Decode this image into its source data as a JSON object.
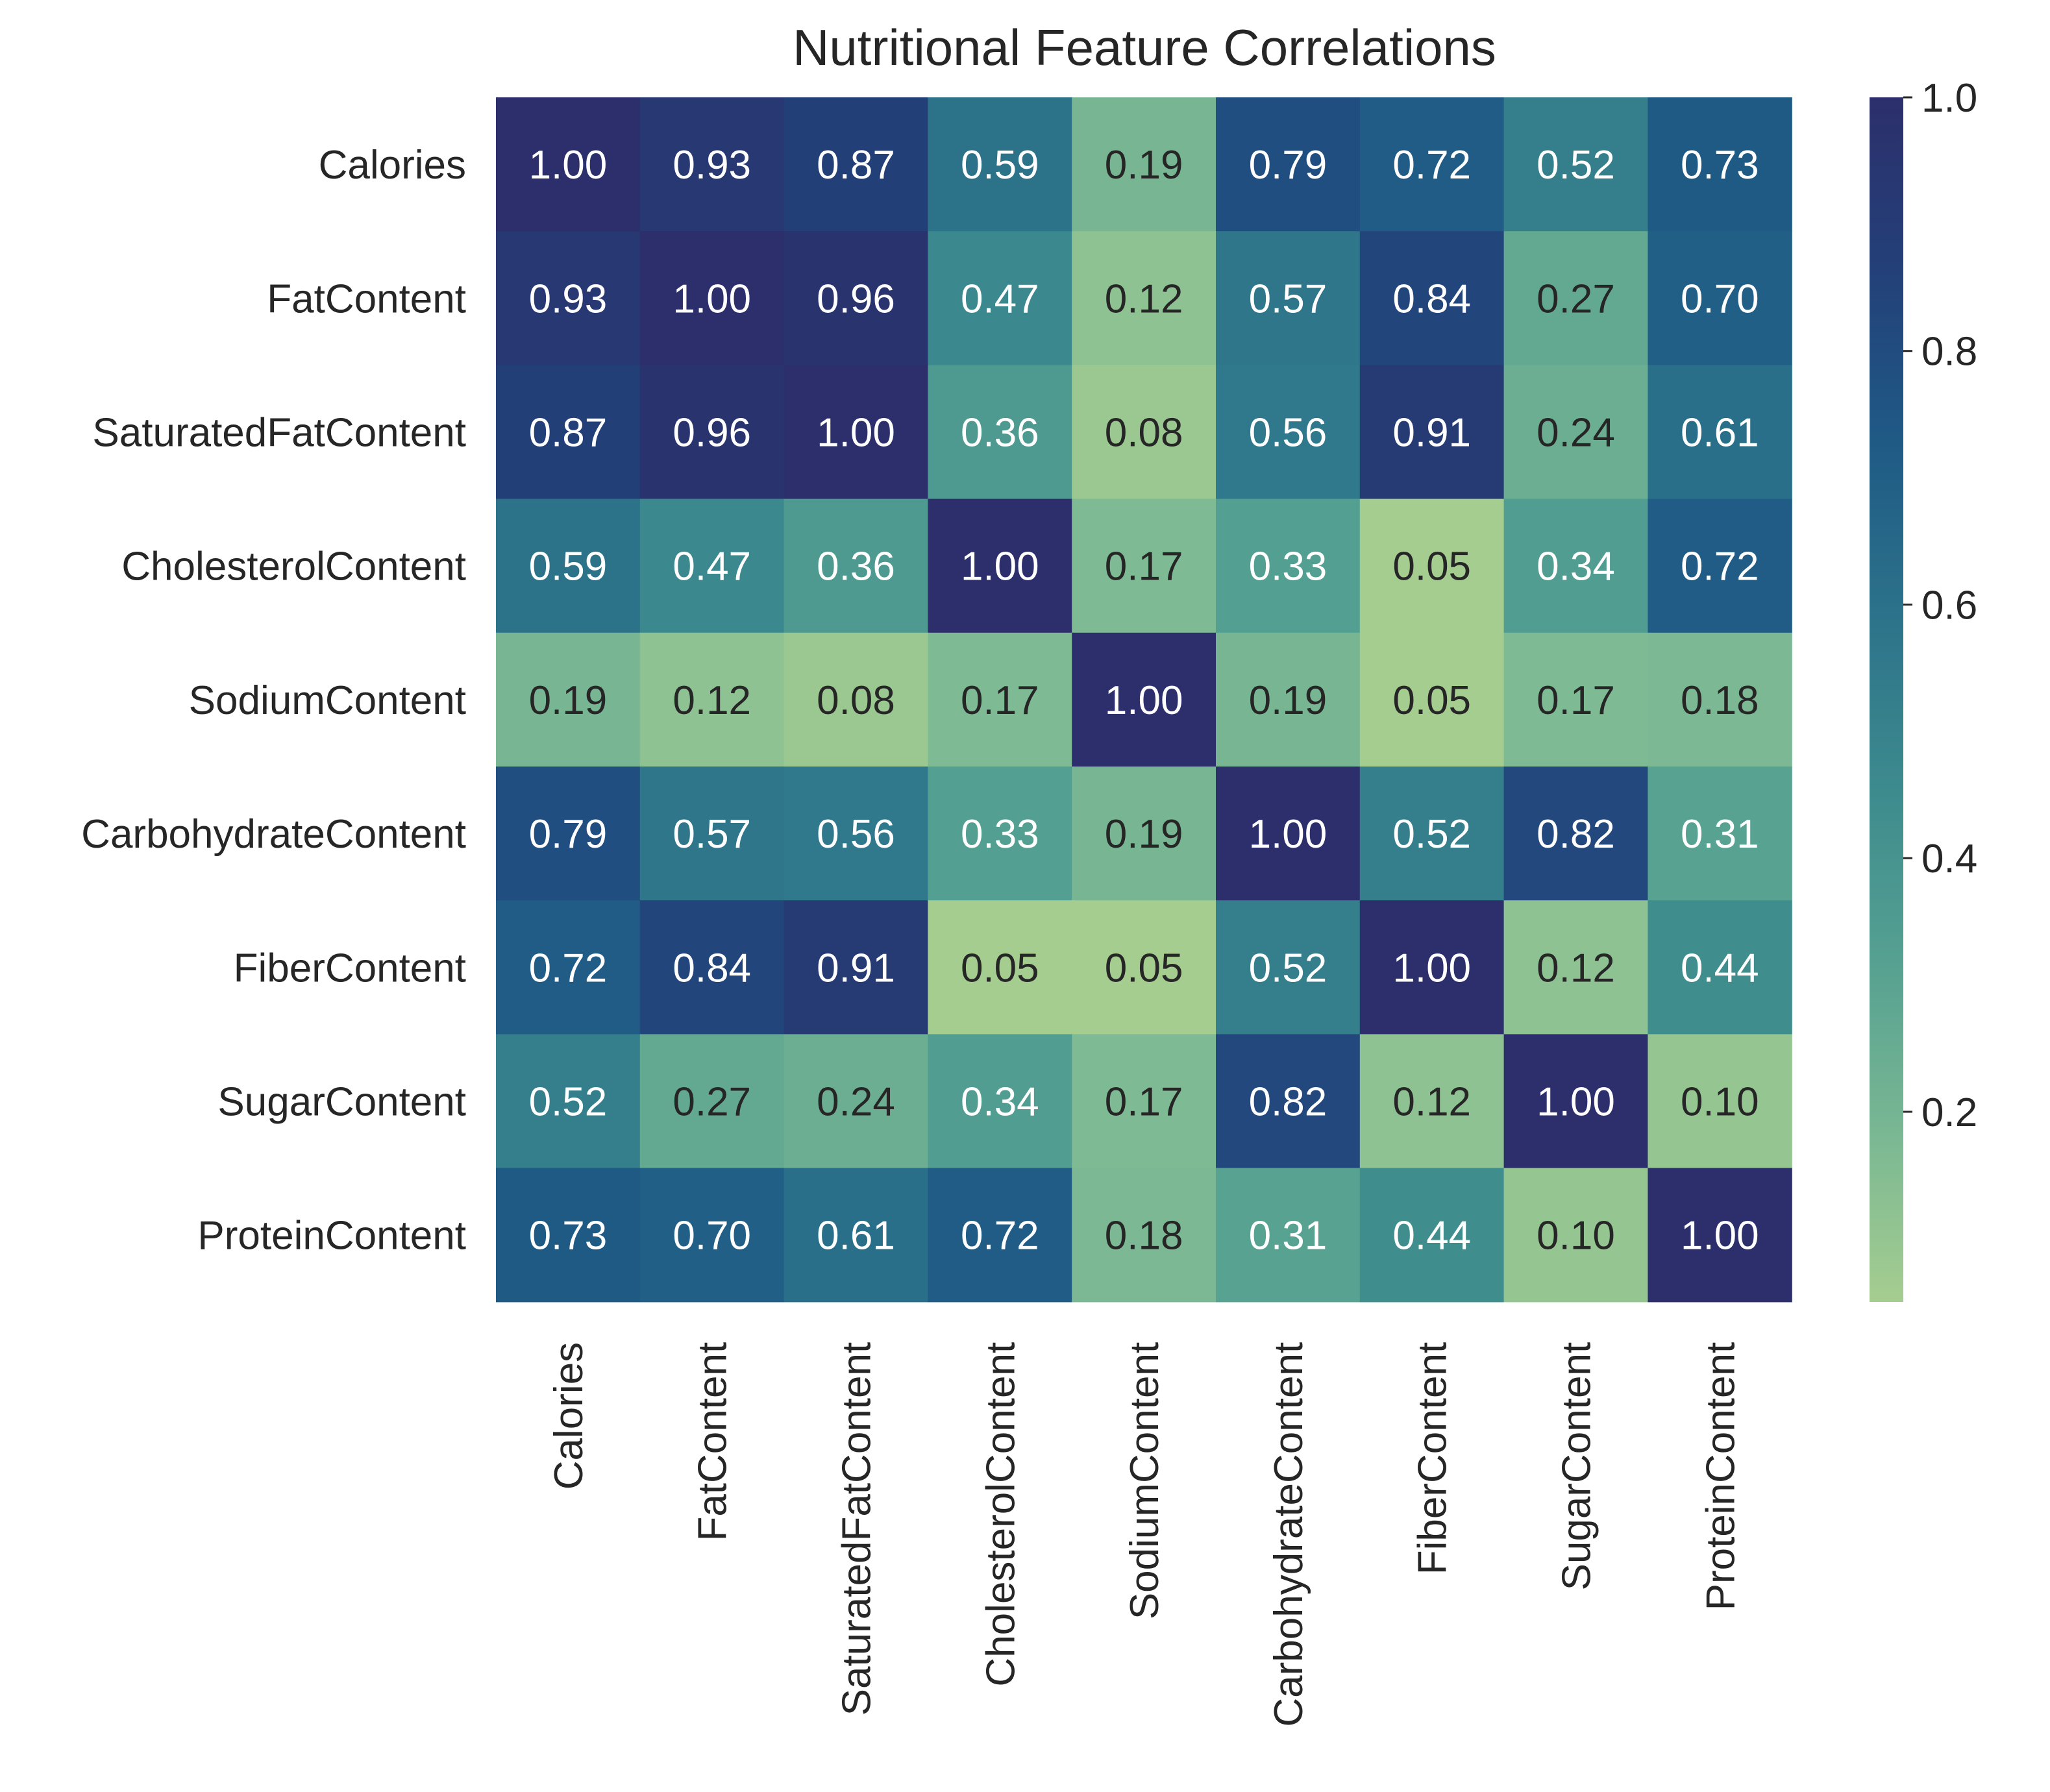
{
  "chart_data": {
    "type": "heatmap",
    "title": "Nutritional Feature Correlations",
    "labels": [
      "Calories",
      "FatContent",
      "SaturatedFatContent",
      "CholesterolContent",
      "SodiumContent",
      "CarbohydrateContent",
      "FiberContent",
      "SugarContent",
      "ProteinContent"
    ],
    "values": [
      [
        1.0,
        0.93,
        0.87,
        0.59,
        0.19,
        0.79,
        0.72,
        0.52,
        0.73
      ],
      [
        0.93,
        1.0,
        0.96,
        0.47,
        0.12,
        0.57,
        0.84,
        0.27,
        0.7
      ],
      [
        0.87,
        0.96,
        1.0,
        0.36,
        0.08,
        0.56,
        0.91,
        0.24,
        0.61
      ],
      [
        0.59,
        0.47,
        0.36,
        1.0,
        0.17,
        0.33,
        0.05,
        0.34,
        0.72
      ],
      [
        0.19,
        0.12,
        0.08,
        0.17,
        1.0,
        0.19,
        0.05,
        0.17,
        0.18
      ],
      [
        0.79,
        0.57,
        0.56,
        0.33,
        0.19,
        1.0,
        0.52,
        0.82,
        0.31
      ],
      [
        0.72,
        0.84,
        0.91,
        0.05,
        0.05,
        0.52,
        1.0,
        0.12,
        0.44
      ],
      [
        0.52,
        0.27,
        0.24,
        0.34,
        0.17,
        0.82,
        0.12,
        1.0,
        0.1
      ],
      [
        0.73,
        0.7,
        0.61,
        0.72,
        0.18,
        0.31,
        0.44,
        0.1,
        1.0
      ]
    ],
    "value_format": "0.00",
    "colormap": "crest",
    "vmin": 0.05,
    "vmax": 1.0,
    "colorbar_ticks": [
      "0.2",
      "0.4",
      "0.6",
      "0.8",
      "1.0"
    ],
    "colorbar_tick_values": [
      0.2,
      0.4,
      0.6,
      0.8,
      1.0
    ],
    "colormap_stops": [
      "#a5cd90",
      "#79b793",
      "#55a091",
      "#3d8a8e",
      "#2c728a",
      "#1f5a85",
      "#234079",
      "#2c2f6b"
    ],
    "text_color_dark": "#262626",
    "text_color_light": "#ffffff"
  }
}
